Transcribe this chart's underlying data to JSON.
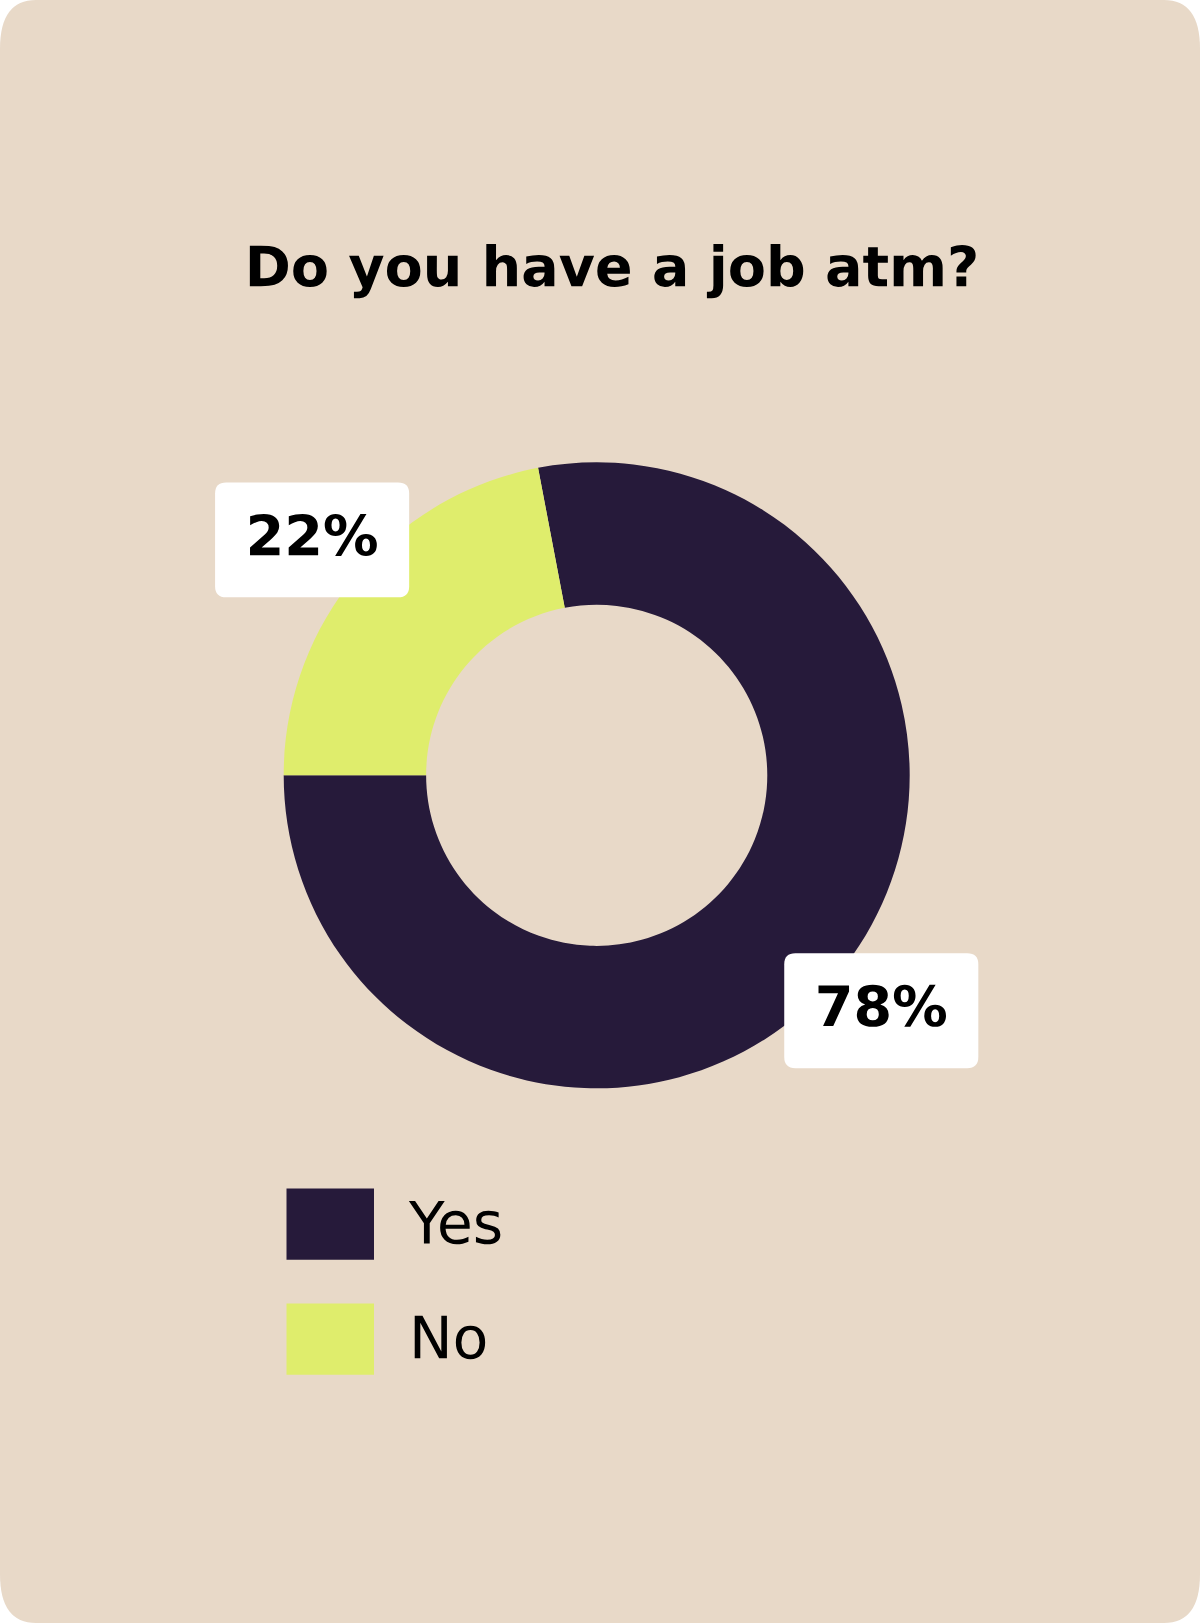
{
  "chart_data": {
    "type": "donut",
    "title": "Do you have a job atm?",
    "categories": [
      "Yes",
      "No"
    ],
    "values": [
      78,
      22
    ],
    "colors": [
      "#261a3a",
      "#dfed6c"
    ],
    "value_labels": [
      "78%",
      "22%"
    ],
    "legend": "bottom left"
  }
}
